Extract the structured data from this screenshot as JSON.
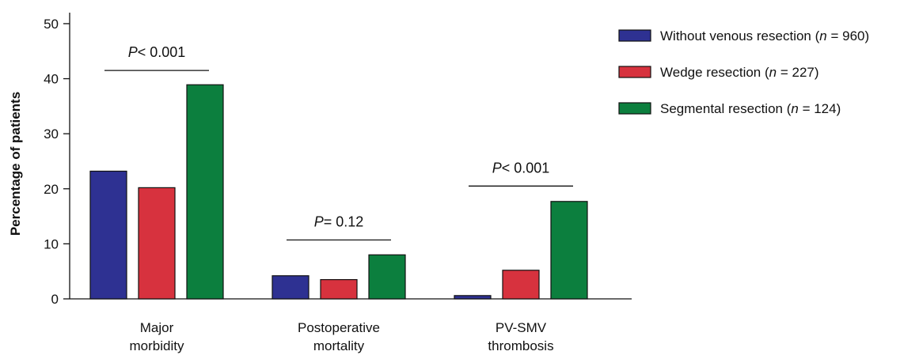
{
  "chart_data": {
    "type": "bar",
    "ylabel": "Percentage of patients",
    "ylim": [
      0,
      52
    ],
    "yticks": [
      0,
      10,
      20,
      30,
      40,
      50
    ],
    "categories": [
      [
        "Major",
        "morbidity"
      ],
      [
        "Postoperative",
        "mortality"
      ],
      [
        "PV-SMV",
        "thrombosis"
      ]
    ],
    "series": [
      {
        "name": "Without venous resection (n = 960)",
        "legend_main": "Without venous resection (",
        "legend_n": "960",
        "color": "#2e3192",
        "values": [
          23.2,
          4.2,
          0.6
        ]
      },
      {
        "name": "Wedge resection (n = 227)",
        "legend_main": "Wedge resection (",
        "legend_n": "227",
        "color": "#d7323e",
        "values": [
          20.2,
          3.5,
          5.2
        ]
      },
      {
        "name": "Segmental resection (n = 124)",
        "legend_main": "Segmental resection (",
        "legend_n": "124",
        "color": "#0c7f3e",
        "values": [
          38.9,
          8.0,
          17.7
        ]
      }
    ],
    "annotations": [
      {
        "category": 0,
        "p_prefix": "P",
        "p_rest": "< 0.001",
        "y": 41.5
      },
      {
        "category": 1,
        "p_prefix": "P",
        "p_rest": "= 0.12",
        "y": 10.7
      },
      {
        "category": 2,
        "p_prefix": "P",
        "p_rest": "< 0.001",
        "y": 20.5
      }
    ],
    "legend_position": "top-right",
    "grid": false
  }
}
